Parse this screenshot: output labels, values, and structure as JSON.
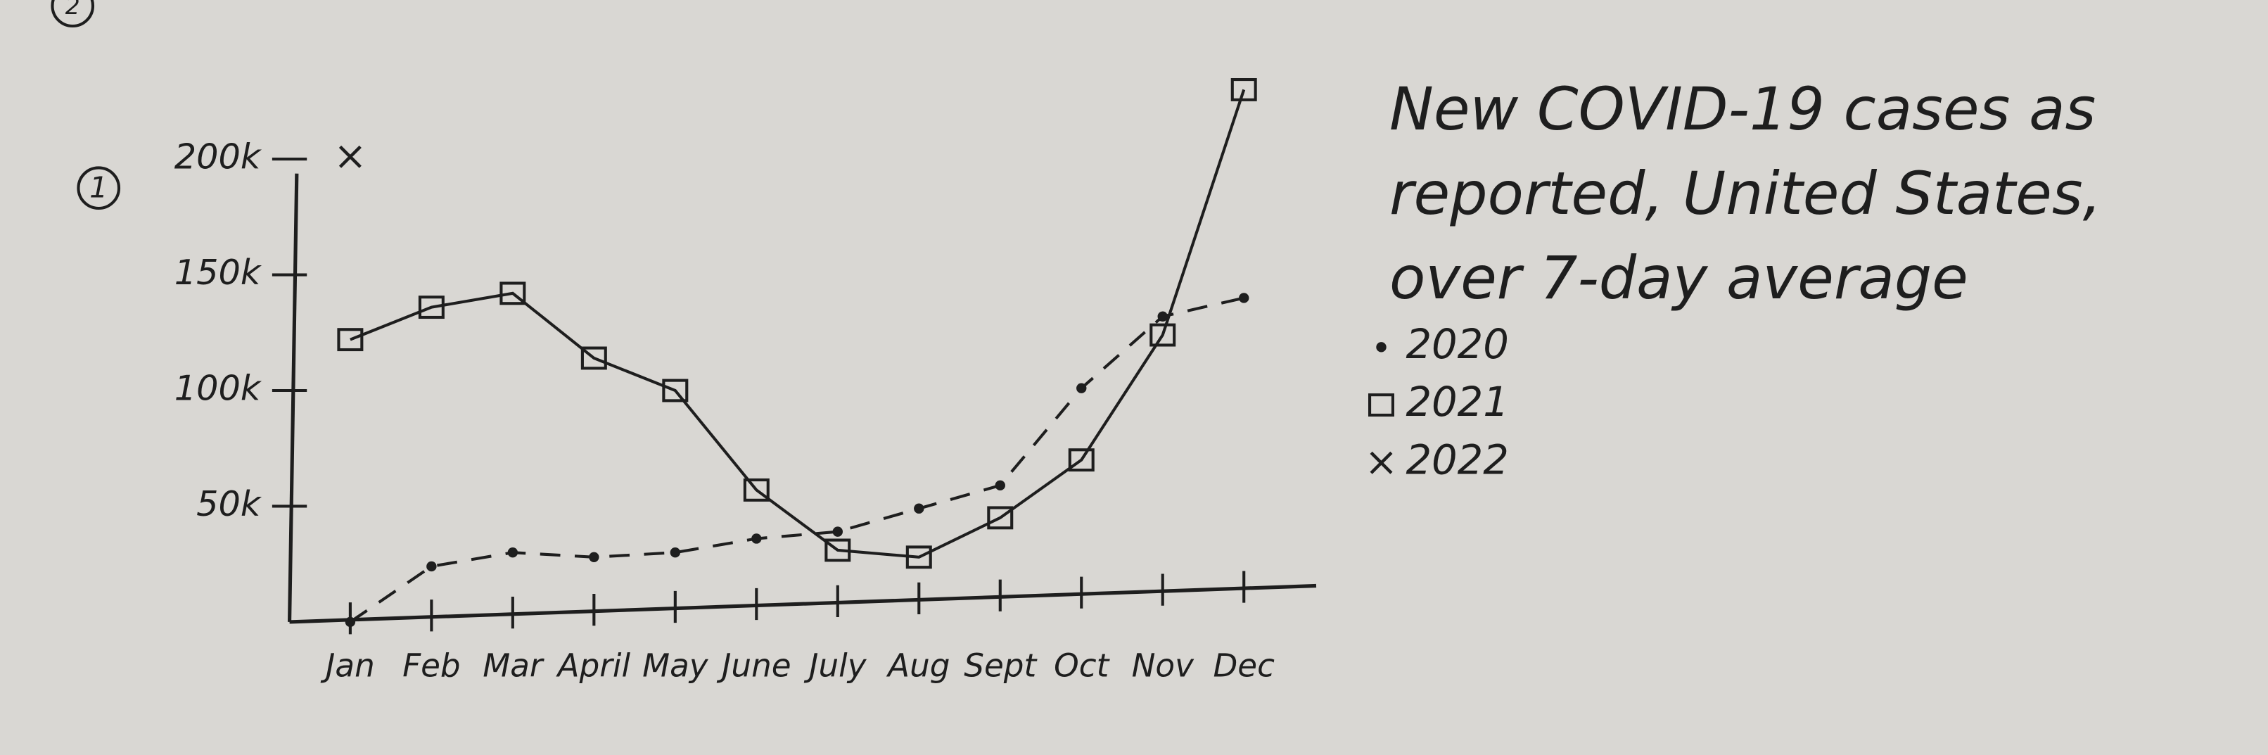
{
  "chart_data": {
    "type": "line",
    "title": "New COVID-19 cases as reported, United States, over 7-day average",
    "annotations": [
      "1",
      "2"
    ],
    "categories": [
      "Jan",
      "Feb",
      "Mar",
      "April",
      "May",
      "June",
      "July",
      "Aug",
      "Sept",
      "Oct",
      "Nov",
      "Dec"
    ],
    "series": [
      {
        "name": "2020",
        "marker": "dot",
        "color": "#1e1e1e",
        "values": [
          0,
          24000,
          30000,
          28000,
          30000,
          36000,
          39000,
          49000,
          59000,
          101000,
          132000,
          140000
        ]
      },
      {
        "name": "2021",
        "marker": "square",
        "color": "#1e1e1e",
        "values": [
          122000,
          136000,
          142000,
          114000,
          100000,
          57000,
          31000,
          28000,
          45000,
          70000,
          124000,
          230000
        ]
      },
      {
        "name": "2022",
        "marker": "x",
        "color": "#1e1e1e",
        "values": [
          201000,
          null,
          null,
          null,
          null,
          null,
          null,
          null,
          null,
          null,
          null,
          null
        ]
      }
    ],
    "ylim": [
      0,
      240000
    ],
    "yticks": [
      {
        "value": 50000,
        "label": "50k"
      },
      {
        "value": 100000,
        "label": "100k"
      },
      {
        "value": 150000,
        "label": "150k"
      },
      {
        "value": 200000,
        "label": "200k"
      }
    ]
  }
}
